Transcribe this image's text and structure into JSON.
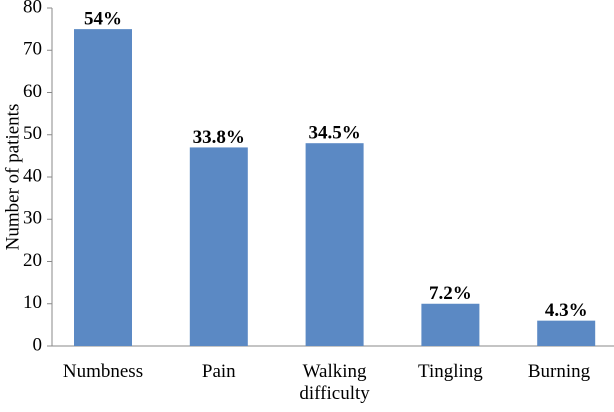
{
  "chart_data": {
    "type": "bar",
    "y_label": "Number of patients",
    "categories": [
      "Numbness",
      "Pain",
      "Walking difficulty",
      "Tingling",
      "Burning"
    ],
    "values": [
      75,
      47,
      48,
      10,
      6
    ],
    "annotations": [
      "54%",
      "33.8%",
      "34.5%",
      "7.2%",
      "4.3%"
    ],
    "color": "#5b89c4",
    "ylim": [
      0,
      80
    ],
    "yticks": [
      0,
      10,
      20,
      30,
      40,
      50,
      60,
      70,
      80
    ],
    "grid": false
  }
}
